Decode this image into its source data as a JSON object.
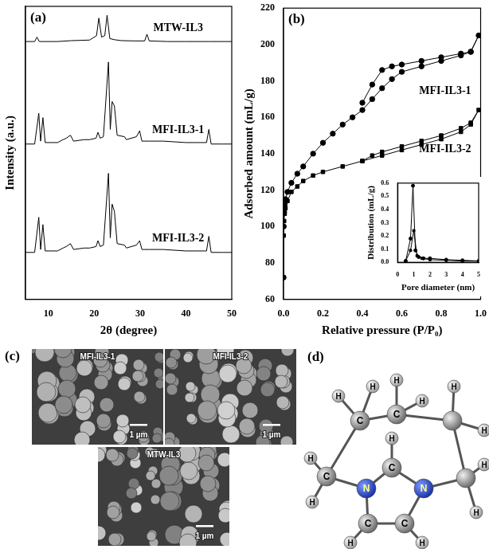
{
  "chart_data": [
    {
      "type": "line",
      "title": "(a)",
      "x_label": "2θ (degree)",
      "y_label": "Intensity (a.u.)",
      "xlim": [
        5,
        50
      ],
      "xticks": [
        10,
        20,
        30,
        40,
        50
      ],
      "ylim": [
        0,
        100
      ],
      "grid": false,
      "tick_labels": "x",
      "series": [
        {
          "name": "MTW-IL3",
          "color": "#000000",
          "x": [
            5,
            7,
            7.5,
            8,
            12,
            15,
            19,
            20.5,
            21,
            21.6,
            22.3,
            22.8,
            23.4,
            24.5,
            26,
            29,
            31,
            31.5,
            32,
            36,
            40,
            45,
            50
          ],
          "values": [
            88,
            88,
            89.5,
            88,
            88,
            88.3,
            88.5,
            90,
            96,
            89.5,
            90,
            97,
            89,
            88.6,
            88.3,
            88.2,
            88.2,
            90.5,
            88.2,
            88,
            88,
            88,
            88
          ]
        },
        {
          "name": "MFI-IL3-1",
          "color": "#000000",
          "x": [
            5,
            7,
            7.9,
            8.3,
            8.8,
            9.3,
            12,
            13.2,
            13.9,
            14.8,
            15.5,
            17.8,
            19,
            20.4,
            20.8,
            21.3,
            22,
            23.1,
            23.5,
            23.9,
            24.4,
            25,
            26.6,
            27,
            29.2,
            29.9,
            30.4,
            32,
            35,
            40,
            44.5,
            45,
            45.5,
            48,
            50
          ],
          "values": [
            53,
            53,
            63.5,
            54,
            62,
            53.5,
            53.5,
            54.5,
            55,
            56,
            54,
            54.5,
            54.5,
            55,
            57,
            55,
            55.5,
            81,
            58,
            67.5,
            66,
            56,
            55.5,
            54.5,
            55.5,
            57.5,
            54,
            54,
            54,
            53.5,
            53.5,
            58,
            53,
            53,
            53
          ]
        },
        {
          "name": "MFI-IL3-2",
          "color": "#000000",
          "x": [
            5,
            7,
            7.9,
            8.3,
            8.8,
            9.3,
            12,
            13.2,
            13.9,
            14.8,
            15.5,
            17.8,
            19,
            20.4,
            20.8,
            21.3,
            22,
            23.1,
            23.5,
            23.9,
            24.4,
            25,
            26.6,
            27,
            29.2,
            29.9,
            30.4,
            32,
            35,
            40,
            44.5,
            45,
            45.5,
            48,
            50
          ],
          "values": [
            16,
            16,
            28,
            17,
            25.5,
            16.5,
            16.5,
            17.5,
            18,
            19,
            17,
            17.5,
            17.5,
            18,
            20,
            18,
            18.5,
            43,
            21,
            32.5,
            30,
            19,
            18.5,
            17.5,
            18.5,
            20,
            17,
            17,
            17,
            16.5,
            16.5,
            21.5,
            16,
            16,
            16
          ]
        }
      ]
    },
    {
      "type": "line",
      "title": "(b)",
      "x_label": "Relative pressure (P/P₀)",
      "y_label": "Adsorbed amount (mL/g)",
      "xlim": [
        0,
        1
      ],
      "xticks": [
        {
          "value": 0,
          "label": "0.0"
        },
        0.2,
        0.4,
        0.6,
        0.8,
        {
          "value": 1,
          "label": "1.0"
        }
      ],
      "ylim": [
        60,
        220
      ],
      "yticks": [
        60,
        80,
        100,
        120,
        140,
        160,
        180,
        200,
        220
      ],
      "grid": false,
      "series": [
        {
          "name": "MFI-IL3-1",
          "color": "#000000",
          "marker": "circle",
          "x": [
            0.0002,
            0.001,
            0.003,
            0.006,
            0.01,
            0.02,
            0.04,
            0.07,
            0.1,
            0.15,
            0.2,
            0.25,
            0.3,
            0.35,
            0.4,
            0.45,
            0.5,
            0.55,
            0.6,
            0.7,
            0.8,
            0.9,
            0.95,
            0.99,
            0.95,
            0.9,
            0.8,
            0.7,
            0.6,
            0.55,
            0.5,
            0.45,
            0.4
          ],
          "values": [
            72,
            100,
            108,
            112,
            115,
            119,
            124,
            129,
            133,
            140,
            146,
            151,
            156,
            160,
            164,
            170,
            176,
            181,
            185,
            188,
            191,
            194,
            196,
            205,
            196,
            195,
            193,
            191,
            189,
            188,
            186,
            178,
            168
          ]
        },
        {
          "name": "MFI-IL3-2",
          "color": "#000000",
          "marker": "square",
          "x": [
            0.0002,
            0.001,
            0.003,
            0.006,
            0.01,
            0.02,
            0.04,
            0.07,
            0.1,
            0.15,
            0.2,
            0.3,
            0.4,
            0.5,
            0.6,
            0.7,
            0.8,
            0.9,
            0.95,
            0.99,
            0.95,
            0.9,
            0.8,
            0.7,
            0.6,
            0.5,
            0.45,
            0.4
          ],
          "values": [
            72,
            95,
            103,
            107,
            110,
            114,
            119,
            122,
            125,
            128,
            130,
            133,
            136,
            139,
            142,
            145,
            148,
            152,
            156,
            164,
            157,
            154,
            150,
            147,
            144,
            141,
            139,
            136
          ]
        }
      ]
    },
    {
      "type": "line",
      "x_label": "Pore diameter (nm)",
      "y_label": "Distribution (mL/g)",
      "xlim": [
        0,
        5
      ],
      "xticks": [
        0,
        1,
        2,
        3,
        4,
        5
      ],
      "ylim": [
        0,
        0.6
      ],
      "yticks": [
        {
          "value": 0,
          "label": "0.0"
        },
        0.1,
        0.2,
        0.3,
        0.4,
        0.5,
        0.6
      ],
      "grid": false,
      "series": [
        {
          "color": "#000000",
          "marker": "circle",
          "x": [
            0.5,
            0.8,
            0.95,
            1.1,
            1.3,
            1.6,
            2,
            3,
            4,
            5
          ],
          "values": [
            0.01,
            0.18,
            0.58,
            0.09,
            0.04,
            0.03,
            0.03,
            0.02,
            0.015,
            0.01
          ]
        },
        {
          "color": "#000000",
          "marker": "square",
          "x": [
            0.5,
            0.8,
            1.0,
            1.2,
            1.5,
            2,
            3,
            4,
            5
          ],
          "values": [
            0.01,
            0.09,
            0.24,
            0.05,
            0.03,
            0.02,
            0.015,
            0.01,
            0.01
          ]
        }
      ]
    }
  ],
  "sem_images": {
    "panel": "(c)",
    "images": [
      {
        "label": "MFI-IL3-1",
        "scale_bar": "1 µm"
      },
      {
        "label": "MFI-IL3-2",
        "scale_bar": "1 µm"
      },
      {
        "label": "MTW-IL3",
        "scale_bar": "1 µm"
      }
    ]
  },
  "molecule": {
    "panel": "(d)",
    "atoms": [
      "C",
      "C",
      null,
      null,
      "C",
      "N",
      "C",
      "N",
      "C",
      "C",
      "H",
      "H",
      "H",
      "H",
      "H",
      "H",
      "H",
      "H",
      "H",
      "H",
      "H",
      "H",
      "H"
    ]
  }
}
